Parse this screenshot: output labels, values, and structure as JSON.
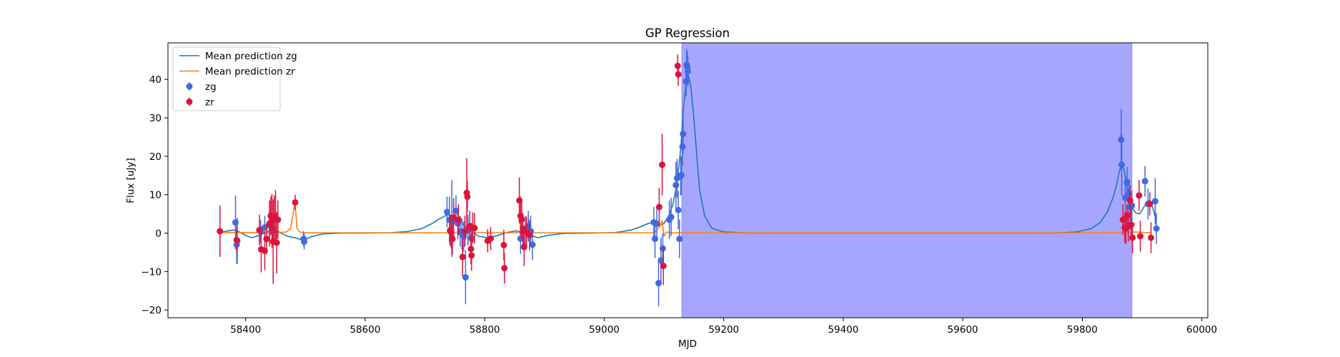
{
  "chart_data": {
    "type": "scatter",
    "title": "GP Regression",
    "xlabel": "MJD",
    "ylabel": "Flux [uJy]",
    "xlim": [
      58270,
      60010
    ],
    "ylim": [
      -22,
      49.5
    ],
    "xticks": [
      58400,
      58600,
      58800,
      59000,
      59200,
      59400,
      59600,
      59800,
      60000
    ],
    "yticks": [
      -20,
      -10,
      0,
      10,
      20,
      30,
      40
    ],
    "grid": false,
    "legend_position": "top-left",
    "shaded_region": {
      "x0": 59130,
      "x1": 59883,
      "color": "#a6a6ff"
    },
    "colors": {
      "zg": "#4169e1",
      "zr": "#dc143c",
      "mean_zg": "#1f77b4",
      "mean_zr": "#ff7f0e"
    },
    "legend": [
      {
        "label": "Mean prediction zg",
        "kind": "line",
        "color": "#1f77b4"
      },
      {
        "label": "Mean prediction zr",
        "kind": "line",
        "color": "#ff7f0e"
      },
      {
        "label": "zg",
        "kind": "errorbar",
        "color": "#4169e1"
      },
      {
        "label": "zr",
        "kind": "errorbar",
        "color": "#dc143c"
      }
    ],
    "series": [
      {
        "name": "zg",
        "color": "#4169e1",
        "points": [
          [
            58383,
            2.8,
            7
          ],
          [
            58385,
            -3,
            5
          ],
          [
            58386,
            -2,
            6
          ],
          [
            58425,
            0.5,
            3
          ],
          [
            58432,
            1.5,
            3
          ],
          [
            58440,
            2,
            4
          ],
          [
            58445,
            1.2,
            4
          ],
          [
            58497,
            -1.5,
            2
          ],
          [
            58498,
            -2.2,
            2
          ],
          [
            58737,
            5.5,
            4
          ],
          [
            58741,
            3.5,
            6
          ],
          [
            58745,
            3.8,
            10
          ],
          [
            58748,
            3.2,
            5
          ],
          [
            58752,
            5.8,
            4
          ],
          [
            58755,
            2.5,
            4
          ],
          [
            58759,
            0.5,
            4
          ],
          [
            58762,
            -0.2,
            4
          ],
          [
            58765,
            -0.8,
            4
          ],
          [
            58768,
            -11.5,
            7
          ],
          [
            58772,
            0.8,
            4
          ],
          [
            58778,
            -1.3,
            4
          ],
          [
            58860,
            -1.4,
            4
          ],
          [
            58864,
            0.3,
            4
          ],
          [
            58868,
            0.5,
            4
          ],
          [
            58873,
            1.8,
            4
          ],
          [
            58877,
            0.5,
            4
          ],
          [
            58880,
            -3,
            4
          ],
          [
            59083,
            2.8,
            4
          ],
          [
            59085,
            -1.5,
            5
          ],
          [
            59088,
            2.4,
            4
          ],
          [
            59091,
            -13,
            6
          ],
          [
            59095,
            -7.1,
            6
          ],
          [
            59098,
            -4,
            4
          ],
          [
            59109,
            3.5,
            5
          ],
          [
            59112,
            4.2,
            5
          ],
          [
            59120,
            12.5,
            6
          ],
          [
            59122,
            14.3,
            5
          ],
          [
            59124,
            6,
            5
          ],
          [
            59126,
            -1.5,
            5
          ],
          [
            59128,
            14.8,
            5
          ],
          [
            59129,
            15.1,
            5
          ],
          [
            59131,
            22.5,
            5
          ],
          [
            59132,
            25.8,
            5
          ],
          [
            59137,
            39.5,
            4
          ],
          [
            59138,
            43.8,
            4
          ],
          [
            59139,
            43.3,
            4
          ],
          [
            59140,
            42.1,
            4
          ],
          [
            59865,
            24.3,
            8
          ],
          [
            59866,
            17.8,
            8
          ],
          [
            59872,
            9.2,
            5
          ],
          [
            59875,
            13.2,
            4
          ],
          [
            59878,
            10.1,
            4
          ],
          [
            59880,
            6.8,
            4
          ],
          [
            59883,
            7.2,
            4
          ],
          [
            59905,
            13.5,
            4
          ],
          [
            59910,
            7.6,
            4
          ],
          [
            59922,
            8.3,
            6
          ],
          [
            59924,
            1.2,
            4
          ]
        ]
      },
      {
        "name": "zr",
        "color": "#dc143c",
        "points": [
          [
            58357,
            0.5,
            6.7
          ],
          [
            58385,
            -1.8,
            3
          ],
          [
            58423,
            0.8,
            4
          ],
          [
            58426,
            -4.2,
            6
          ],
          [
            58432,
            -4.6,
            5
          ],
          [
            58435,
            -1.5,
            4
          ],
          [
            58440,
            2.5,
            6
          ],
          [
            58442,
            4.5,
            5
          ],
          [
            58444,
            3.2,
            7
          ],
          [
            58446,
            -2.2,
            11
          ],
          [
            58448,
            3.8,
            6
          ],
          [
            58450,
            4.2,
            7
          ],
          [
            58452,
            -2.5,
            8
          ],
          [
            58454,
            3.5,
            5
          ],
          [
            58483,
            8,
            2
          ],
          [
            58742,
            0.7,
            4
          ],
          [
            58744,
            0.2,
            4
          ],
          [
            58746,
            -1.5,
            4
          ],
          [
            58748,
            4.1,
            5
          ],
          [
            58756,
            3.5,
            4
          ],
          [
            58763,
            -6.2,
            5
          ],
          [
            58767,
            0.5,
            4
          ],
          [
            58770,
            10.5,
            9
          ],
          [
            58771,
            9.5,
            4
          ],
          [
            58775,
            1.8,
            4
          ],
          [
            58777,
            -4.1,
            4
          ],
          [
            58778,
            -5.8,
            4
          ],
          [
            58780,
            1.4,
            4
          ],
          [
            58783,
            1.3,
            4
          ],
          [
            58805,
            -2,
            3
          ],
          [
            58810,
            -1.4,
            3
          ],
          [
            58832,
            -3.1,
            4
          ],
          [
            58833,
            -9.1,
            4
          ],
          [
            58858,
            8.5,
            6
          ],
          [
            58860,
            4.5,
            5
          ],
          [
            58862,
            3.6,
            5
          ],
          [
            58864,
            1.2,
            4
          ],
          [
            58866,
            -3.6,
            5
          ],
          [
            58870,
            0.3,
            4
          ],
          [
            58875,
            -0.5,
            4
          ],
          [
            59092,
            6.8,
            5
          ],
          [
            59097,
            17.8,
            8
          ],
          [
            59099,
            -8.5,
            5
          ],
          [
            59123,
            43.5,
            3
          ],
          [
            59124,
            41.3,
            3
          ],
          [
            59868,
            3.5,
            4
          ],
          [
            59871,
            1.5,
            4
          ],
          [
            59873,
            1.2,
            4
          ],
          [
            59875,
            4.5,
            3
          ],
          [
            59877,
            1.8,
            4
          ],
          [
            59880,
            8.5,
            4
          ],
          [
            59882,
            2.2,
            4
          ],
          [
            59884,
            -1.2,
            4
          ],
          [
            59895,
            9.8,
            4
          ],
          [
            59897,
            -0.8,
            4
          ],
          [
            59913,
            7.6,
            3
          ],
          [
            59915,
            -1.2,
            4
          ]
        ]
      }
    ],
    "mean_lines": [
      {
        "name": "Mean prediction zg",
        "color": "#1f77b4",
        "x": [
          58357,
          58370,
          58380,
          58390,
          58400,
          58410,
          58425,
          58440,
          58455,
          58470,
          58485,
          58497,
          58510,
          58530,
          58560,
          58600,
          58640,
          58670,
          58695,
          58712,
          58725,
          58738,
          58750,
          58762,
          58775,
          58790,
          58805,
          58820,
          58838,
          58852,
          58865,
          58878,
          58890,
          58905,
          58930,
          58980,
          59020,
          59045,
          59060,
          59075,
          59085,
          59092,
          59100,
          59108,
          59115,
          59122,
          59128,
          59133,
          59138,
          59141,
          59145,
          59150,
          59155,
          59160,
          59168,
          59180,
          59200,
          59250,
          59400,
          59600,
          59750,
          59790,
          59815,
          59830,
          59842,
          59852,
          59858,
          59862,
          59866,
          59870,
          59875,
          59880,
          59885,
          59890,
          59896,
          59902,
          59908,
          59912,
          59916,
          59920,
          59924
        ],
        "y": [
          0.2,
          0.6,
          0.8,
          0.3,
          -0.6,
          -1.2,
          -0.5,
          0.8,
          0.4,
          -0.8,
          -1.3,
          -1.9,
          -0.9,
          -0.2,
          0,
          0,
          0.1,
          0.4,
          1.2,
          2.5,
          3.8,
          4.8,
          4.4,
          2.6,
          0.6,
          -0.8,
          -1.2,
          -0.7,
          0.2,
          0.6,
          0.2,
          -0.6,
          -1.2,
          -0.6,
          -0.1,
          0,
          0.2,
          0.8,
          1.6,
          2.6,
          2.8,
          2,
          2.5,
          4.5,
          7.5,
          13,
          22,
          33,
          40.5,
          41,
          38,
          30,
          20,
          11,
          4.5,
          1.3,
          0.3,
          0,
          0,
          0,
          0,
          0.3,
          1.2,
          2.8,
          5.5,
          9.5,
          13,
          16,
          18,
          16.5,
          12,
          8.5,
          6.2,
          5.2,
          5,
          6.5,
          8,
          8.5,
          7.5,
          5.5,
          3
        ]
      },
      {
        "name": "Mean prediction zr",
        "color": "#ff7f0e",
        "x": [
          58357,
          58455,
          58468,
          58475,
          58480,
          58482,
          58484,
          58486,
          58490,
          58500,
          59080,
          59086,
          59092,
          59097,
          59100,
          59104,
          59110,
          59120,
          59865,
          59870,
          59880,
          59890,
          59900,
          59915
        ],
        "y": [
          0.15,
          0.15,
          0.3,
          1.2,
          5.5,
          7.8,
          5.5,
          1.2,
          0.3,
          0.1,
          0.1,
          0.4,
          1.5,
          3.2,
          -0.8,
          0.3,
          0.1,
          0.1,
          0.1,
          0.4,
          0.2,
          0.3,
          0.2,
          0.1
        ]
      }
    ]
  }
}
